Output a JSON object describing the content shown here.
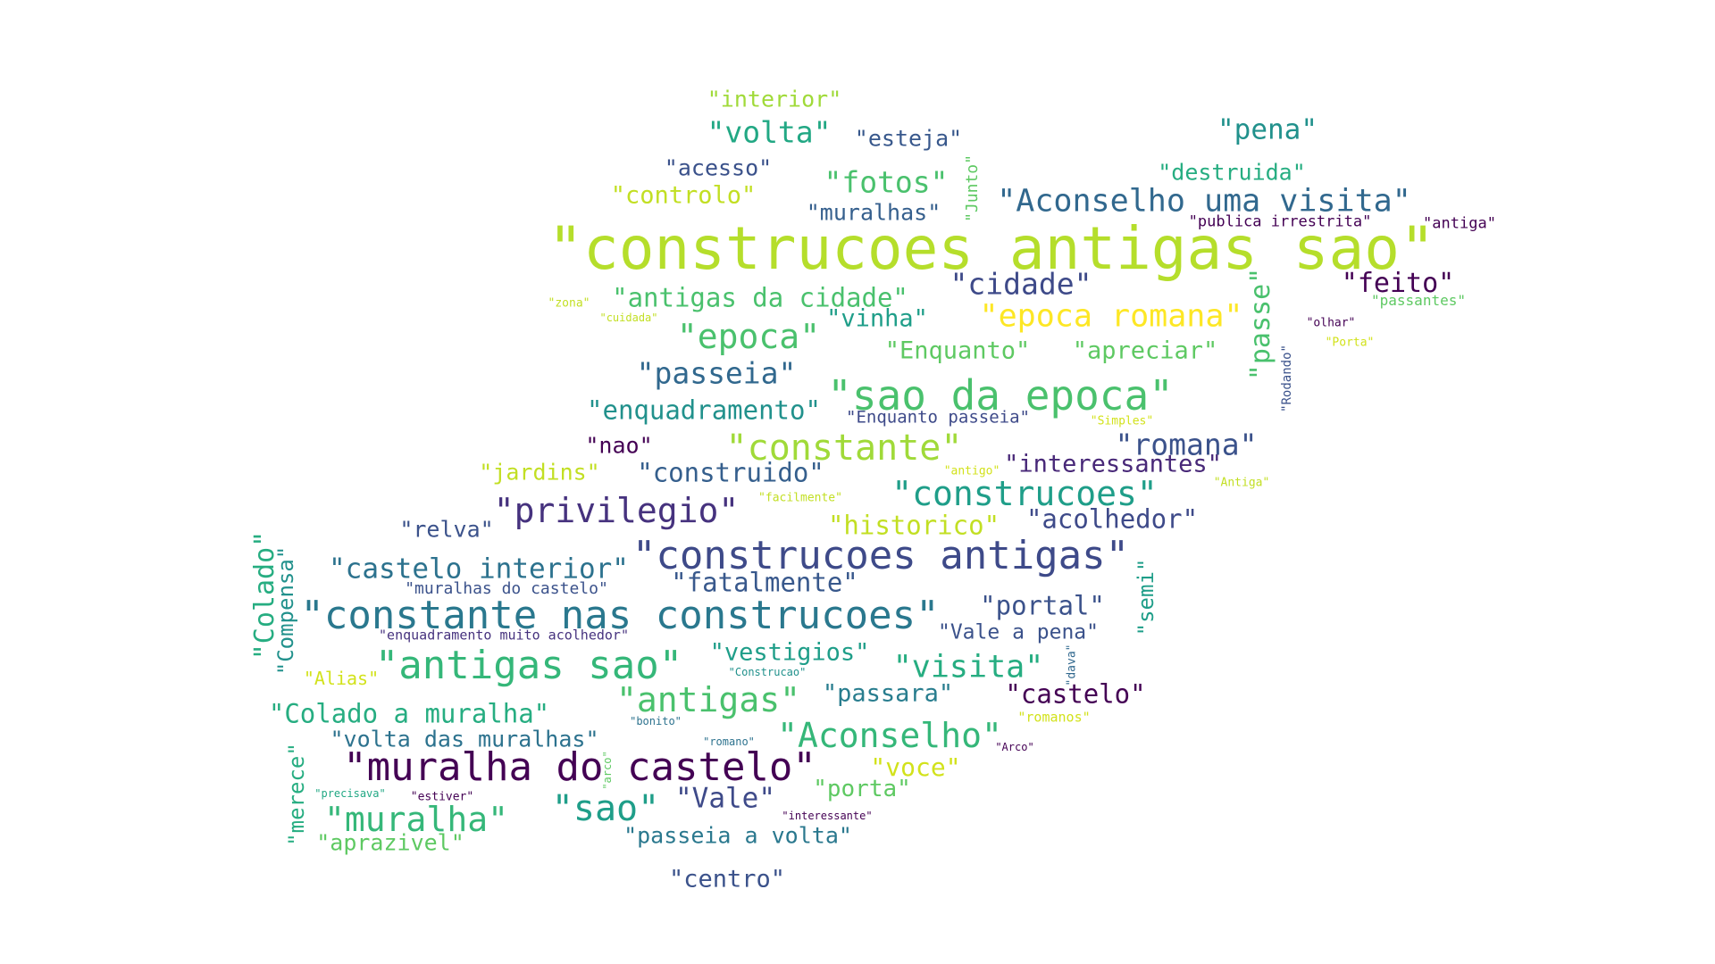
{
  "words": [
    {
      "text": "\"construcoes antigas sao\"",
      "color": "#b5de2b"
    },
    {
      "text": "\"sao da epoca\"",
      "color": "#4ac16d"
    },
    {
      "text": "\"constante nas construcoes\"",
      "color": "#2a788e"
    },
    {
      "text": "\"construcoes antigas\"",
      "color": "#3e4a89"
    },
    {
      "text": "\"muralha do castelo\"",
      "color": "#440154"
    },
    {
      "text": "\"antigas sao\"",
      "color": "#35b779"
    },
    {
      "text": "\"Aconselho uma visita\"",
      "color": "#31688e"
    },
    {
      "text": "\"epoca romana\"",
      "color": "#fde725"
    },
    {
      "text": "\"constante\"",
      "color": "#a0da39"
    },
    {
      "text": "\"construcoes\"",
      "color": "#1f9e89"
    },
    {
      "text": "\"privilegio\"",
      "color": "#46327e"
    },
    {
      "text": "\"Aconselho\"",
      "color": "#35b779"
    },
    {
      "text": "\"muralha\"",
      "color": "#35b779"
    },
    {
      "text": "\"antigas\"",
      "color": "#4ac16d"
    },
    {
      "text": "\"sao\"",
      "color": "#1f9e89"
    },
    {
      "text": "\"epoca\"",
      "color": "#4ac16d"
    },
    {
      "text": "\"visita\"",
      "color": "#26ad81"
    },
    {
      "text": "\"romana\"",
      "color": "#3b528b"
    },
    {
      "text": "\"cidade\"",
      "color": "#3e4a89"
    },
    {
      "text": "\"passeia\"",
      "color": "#31688e"
    },
    {
      "text": "\"fotos\"",
      "color": "#4ac16d"
    },
    {
      "text": "\"volta\"",
      "color": "#22a884"
    },
    {
      "text": "\"feito\"",
      "color": "#440154"
    },
    {
      "text": "\"pena\"",
      "color": "#21918c"
    },
    {
      "text": "\"castelo interior\"",
      "color": "#2c728e"
    },
    {
      "text": "\"antigas da cidade\"",
      "color": "#4ac16d"
    },
    {
      "text": "\"enquadramento\"",
      "color": "#21918c"
    },
    {
      "text": "\"Colado a muralha\"",
      "color": "#26ad81"
    },
    {
      "text": "\"construido\"",
      "color": "#355f8d"
    },
    {
      "text": "\"interessantes\"",
      "color": "#482878"
    },
    {
      "text": "\"historico\"",
      "color": "#c2df23"
    },
    {
      "text": "\"acolhedor\"",
      "color": "#3e4a89"
    },
    {
      "text": "\"fatalmente\"",
      "color": "#38588c"
    },
    {
      "text": "\"portal\"",
      "color": "#3b528b"
    },
    {
      "text": "\"castelo\"",
      "color": "#440154"
    },
    {
      "text": "\"vestigios\"",
      "color": "#1f9e89"
    },
    {
      "text": "\"passara\"",
      "color": "#287d8e"
    },
    {
      "text": "\"Vale\"",
      "color": "#3e4a89"
    },
    {
      "text": "\"apreciar\"",
      "color": "#5ec962"
    },
    {
      "text": "\"Enquanto\"",
      "color": "#5ec962"
    },
    {
      "text": "\"vinha\"",
      "color": "#1f9e89"
    },
    {
      "text": "\"controlo\"",
      "color": "#c2df23"
    },
    {
      "text": "\"acesso\"",
      "color": "#3b528b"
    },
    {
      "text": "\"esteja\"",
      "color": "#38588c"
    },
    {
      "text": "\"interior\"",
      "color": "#a0da39"
    },
    {
      "text": "\"muralhas\"",
      "color": "#355f8d"
    },
    {
      "text": "\"destruida\"",
      "color": "#26ad81"
    },
    {
      "text": "\"jardins\"",
      "color": "#c2df23"
    },
    {
      "text": "\"nao\"",
      "color": "#440154"
    },
    {
      "text": "\"relva\"",
      "color": "#3b528b"
    },
    {
      "text": "\"voce\"",
      "color": "#d2e21b"
    },
    {
      "text": "\"porta\"",
      "color": "#5ec962"
    },
    {
      "text": "\"volta das muralhas\"",
      "color": "#2c728e"
    },
    {
      "text": "\"aprazivel\"",
      "color": "#5ec962"
    },
    {
      "text": "\"passeia a volta\"",
      "color": "#2a788e"
    },
    {
      "text": "\"centro\"",
      "color": "#3b528b"
    },
    {
      "text": "\"Vale a pena\"",
      "color": "#3b528b"
    },
    {
      "text": "\"Enquanto passeia\"",
      "color": "#3e4a89"
    },
    {
      "text": "\"Alias\"",
      "color": "#d2e21b"
    },
    {
      "text": "\"muralhas do castelo\"",
      "color": "#3b528b"
    },
    {
      "text": "\"enquadramento muito acolhedor\"",
      "color": "#46327e"
    },
    {
      "text": "\"publica irrestrita\"",
      "color": "#440154"
    },
    {
      "text": "\"antiga\"",
      "color": "#440154"
    },
    {
      "text": "\"passantes\"",
      "color": "#5ec962"
    },
    {
      "text": "\"olhar\"",
      "color": "#440154"
    },
    {
      "text": "\"Porta\"",
      "color": "#d2e21b"
    },
    {
      "text": "\"Simples\"",
      "color": "#d2e21b"
    },
    {
      "text": "\"Antiga\"",
      "color": "#c2df23"
    },
    {
      "text": "\"antigo\"",
      "color": "#d2e21b"
    },
    {
      "text": "\"facilmente\"",
      "color": "#c2df23"
    },
    {
      "text": "\"zona\"",
      "color": "#c2df23"
    },
    {
      "text": "\"cuidada\"",
      "color": "#c2df23"
    },
    {
      "text": "\"Construcao\"",
      "color": "#21918c"
    },
    {
      "text": "\"bonito\"",
      "color": "#2c728e"
    },
    {
      "text": "\"romano\"",
      "color": "#2c728e"
    },
    {
      "text": "\"romanos\"",
      "color": "#d2e21b"
    },
    {
      "text": "\"Arco\"",
      "color": "#440154"
    },
    {
      "text": "\"interessante\"",
      "color": "#440154"
    },
    {
      "text": "\"precisava\"",
      "color": "#22a884"
    },
    {
      "text": "\"estiver\"",
      "color": "#440154"
    },
    {
      "text": "\"Colado\"",
      "color": "#26ad81"
    },
    {
      "text": "\"Compensa\"",
      "color": "#21918c"
    },
    {
      "text": "\"merece\"",
      "color": "#26ad81"
    },
    {
      "text": "\"passe\"",
      "color": "#4ac16d"
    },
    {
      "text": "\"Junto\"",
      "color": "#5ec962"
    },
    {
      "text": "\"semi\"",
      "color": "#1f9e89"
    },
    {
      "text": "\"Rodando\"",
      "color": "#3b528b"
    },
    {
      "text": "\"dava\"",
      "color": "#31688e"
    },
    {
      "text": "\"arco\"",
      "color": "#5ec962"
    }
  ]
}
